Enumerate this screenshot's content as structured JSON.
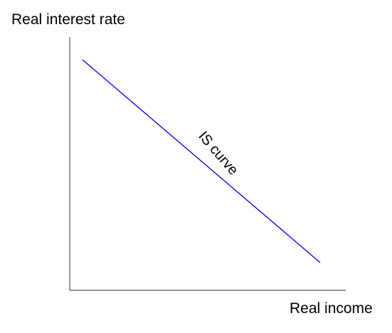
{
  "diagram": {
    "y_axis_label": "Real interest rate",
    "x_axis_label": "Real income",
    "curve_label": "IS curve",
    "colors": {
      "axis": "#595959",
      "curve": "#0000ff",
      "text": "#000000",
      "background": "#ffffff"
    }
  }
}
